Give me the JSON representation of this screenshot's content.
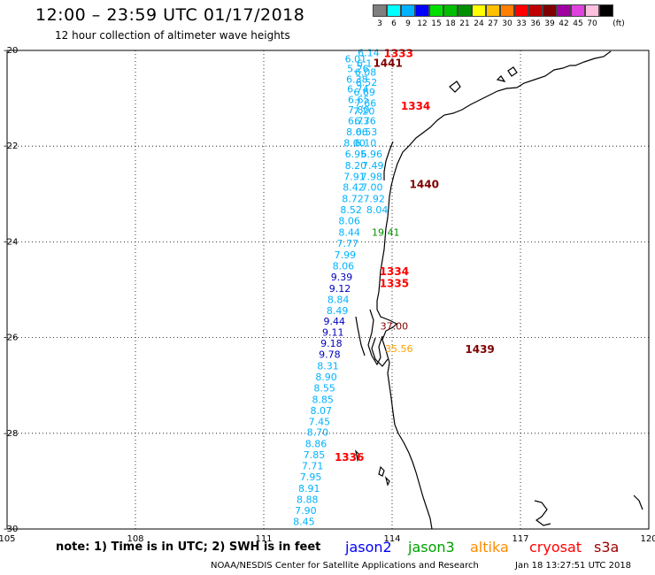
{
  "header": {
    "title": "12:00 – 23:59 UTC 01/17/2018",
    "subtitle": "12 hour collection of altimeter wave heights"
  },
  "legend": {
    "unit": "(ft)",
    "bins": [
      {
        "label": "3",
        "color": "#7f7f7f"
      },
      {
        "label": "6",
        "color": "#00ffff"
      },
      {
        "label": "9",
        "color": "#00b2ff"
      },
      {
        "label": "12",
        "color": "#0000ff"
      },
      {
        "label": "15",
        "color": "#00e000"
      },
      {
        "label": "18",
        "color": "#00bf00"
      },
      {
        "label": "21",
        "color": "#008f00"
      },
      {
        "label": "24",
        "color": "#ffff00"
      },
      {
        "label": "27",
        "color": "#ffc000"
      },
      {
        "label": "30",
        "color": "#ff8000"
      },
      {
        "label": "33",
        "color": "#ff0000"
      },
      {
        "label": "36",
        "color": "#c00000"
      },
      {
        "label": "39",
        "color": "#800000"
      },
      {
        "label": "42",
        "color": "#a000a0"
      },
      {
        "label": "45",
        "color": "#e040e0"
      },
      {
        "label": "70",
        "color": "#ffc0e0"
      },
      {
        "label": "",
        "color": "#000000"
      }
    ]
  },
  "map": {
    "lon_ticks": [
      "105",
      "108",
      "111",
      "114",
      "117",
      "120"
    ],
    "lat_ticks": [
      "-20",
      "-22",
      "-24",
      "-26",
      "-28",
      "-30"
    ],
    "gridlines": true
  },
  "chart_data": {
    "type": "scatter",
    "xlim": [
      105,
      120
    ],
    "ylim": [
      -30,
      -20
    ],
    "xlabel": "",
    "ylabel": "",
    "colors": {
      "light": "#00b2ff",
      "dark": "#0000c0",
      "green": "#008f00",
      "orange": "#ffa000",
      "red": "#ff0000",
      "dred": "#800000"
    },
    "points": [
      {
        "lon": 113.45,
        "lat": -20.05,
        "text": "6.14",
        "c": "light"
      },
      {
        "lon": 113.15,
        "lat": -20.18,
        "text": "6.01",
        "c": "light"
      },
      {
        "lon": 113.35,
        "lat": -20.27,
        "text": "6.1",
        "c": "light"
      },
      {
        "lon": 113.2,
        "lat": -20.38,
        "text": "5.26",
        "c": "light"
      },
      {
        "lon": 113.38,
        "lat": -20.45,
        "text": "6.08",
        "c": "light"
      },
      {
        "lon": 113.18,
        "lat": -20.6,
        "text": "6.38",
        "c": "light"
      },
      {
        "lon": 113.4,
        "lat": -20.67,
        "text": "6.52",
        "c": "light"
      },
      {
        "lon": 113.2,
        "lat": -20.8,
        "text": "6.74",
        "c": "light"
      },
      {
        "lon": 113.35,
        "lat": -20.87,
        "text": "6.69",
        "c": "light"
      },
      {
        "lon": 113.22,
        "lat": -21.03,
        "text": "6.65",
        "c": "light"
      },
      {
        "lon": 113.38,
        "lat": -21.1,
        "text": "7.66",
        "c": "light"
      },
      {
        "lon": 113.22,
        "lat": -21.24,
        "text": "7.80",
        "c": "light"
      },
      {
        "lon": 113.34,
        "lat": -21.27,
        "text": "7.20",
        "c": "light"
      },
      {
        "lon": 113.22,
        "lat": -21.47,
        "text": "6.73",
        "c": "light"
      },
      {
        "lon": 113.37,
        "lat": -21.47,
        "text": "6.76",
        "c": "light"
      },
      {
        "lon": 113.18,
        "lat": -21.7,
        "text": "8.06",
        "c": "light"
      },
      {
        "lon": 113.4,
        "lat": -21.7,
        "text": "6.53",
        "c": "light"
      },
      {
        "lon": 113.12,
        "lat": -21.93,
        "text": "8.00",
        "c": "light"
      },
      {
        "lon": 113.38,
        "lat": -21.93,
        "text": "6.10",
        "c": "light"
      },
      {
        "lon": 113.15,
        "lat": -22.16,
        "text": "6.95",
        "c": "light"
      },
      {
        "lon": 113.52,
        "lat": -22.16,
        "text": "6.96",
        "c": "light"
      },
      {
        "lon": 113.15,
        "lat": -22.4,
        "text": "8.20",
        "c": "light"
      },
      {
        "lon": 113.55,
        "lat": -22.4,
        "text": "7.49",
        "c": "light"
      },
      {
        "lon": 113.12,
        "lat": -22.63,
        "text": "7.91",
        "c": "light"
      },
      {
        "lon": 113.52,
        "lat": -22.63,
        "text": "7.98",
        "c": "light"
      },
      {
        "lon": 113.1,
        "lat": -22.86,
        "text": "8.42",
        "c": "light"
      },
      {
        "lon": 113.53,
        "lat": -22.86,
        "text": "7.00",
        "c": "light"
      },
      {
        "lon": 113.08,
        "lat": -23.1,
        "text": "8.72",
        "c": "light"
      },
      {
        "lon": 113.58,
        "lat": -23.1,
        "text": "7.92",
        "c": "light"
      },
      {
        "lon": 113.04,
        "lat": -23.33,
        "text": "8.52",
        "c": "light"
      },
      {
        "lon": 113.65,
        "lat": -23.33,
        "text": "8.04",
        "c": "light"
      },
      {
        "lon": 113.0,
        "lat": -23.56,
        "text": "8.06",
        "c": "light"
      },
      {
        "lon": 113.0,
        "lat": -23.8,
        "text": "8.44",
        "c": "light"
      },
      {
        "lon": 112.96,
        "lat": -24.03,
        "text": "7.77",
        "c": "light"
      },
      {
        "lon": 112.9,
        "lat": -24.27,
        "text": "7.99",
        "c": "light"
      },
      {
        "lon": 112.86,
        "lat": -24.5,
        "text": "8.06",
        "c": "light"
      },
      {
        "lon": 112.82,
        "lat": -24.73,
        "text": "9.39",
        "c": "dark"
      },
      {
        "lon": 112.78,
        "lat": -24.97,
        "text": "9.12",
        "c": "dark"
      },
      {
        "lon": 112.74,
        "lat": -25.2,
        "text": "8.84",
        "c": "light"
      },
      {
        "lon": 112.72,
        "lat": -25.43,
        "text": "8.49",
        "c": "light"
      },
      {
        "lon": 112.65,
        "lat": -25.66,
        "text": "9.44",
        "c": "dark"
      },
      {
        "lon": 112.62,
        "lat": -25.89,
        "text": "9.11",
        "c": "dark"
      },
      {
        "lon": 112.58,
        "lat": -26.12,
        "text": "9.18",
        "c": "dark"
      },
      {
        "lon": 112.54,
        "lat": -26.35,
        "text": "9.78",
        "c": "dark"
      },
      {
        "lon": 112.5,
        "lat": -26.59,
        "text": "8.31",
        "c": "light"
      },
      {
        "lon": 112.46,
        "lat": -26.82,
        "text": "8.90",
        "c": "light"
      },
      {
        "lon": 112.42,
        "lat": -27.05,
        "text": "8.55",
        "c": "light"
      },
      {
        "lon": 112.38,
        "lat": -27.29,
        "text": "8.85",
        "c": "light"
      },
      {
        "lon": 112.34,
        "lat": -27.52,
        "text": "8.07",
        "c": "light"
      },
      {
        "lon": 112.3,
        "lat": -27.75,
        "text": "7.45",
        "c": "light"
      },
      {
        "lon": 112.26,
        "lat": -27.98,
        "text": "8.70",
        "c": "light"
      },
      {
        "lon": 112.22,
        "lat": -28.22,
        "text": "8.86",
        "c": "light"
      },
      {
        "lon": 112.18,
        "lat": -28.45,
        "text": "7.85",
        "c": "light"
      },
      {
        "lon": 112.14,
        "lat": -28.68,
        "text": "7.71",
        "c": "light"
      },
      {
        "lon": 112.1,
        "lat": -28.91,
        "text": "7.95",
        "c": "light"
      },
      {
        "lon": 112.06,
        "lat": -29.15,
        "text": "8.91",
        "c": "light"
      },
      {
        "lon": 112.02,
        "lat": -29.38,
        "text": "8.88",
        "c": "light"
      },
      {
        "lon": 111.98,
        "lat": -29.61,
        "text": "7.90",
        "c": "light"
      },
      {
        "lon": 111.94,
        "lat": -29.84,
        "text": "8.45",
        "c": "light"
      },
      {
        "lon": 113.85,
        "lat": -23.8,
        "text": "19.41",
        "c": "green"
      },
      {
        "lon": 114.05,
        "lat": -25.76,
        "text": "37.00",
        "c": "dred"
      },
      {
        "lon": 114.16,
        "lat": -26.23,
        "text": "35.56",
        "c": "orange"
      }
    ],
    "passes": [
      {
        "lon": 114.15,
        "lat": -20.05,
        "text": "1333",
        "c": "red"
      },
      {
        "lon": 113.9,
        "lat": -20.25,
        "text": "1441",
        "c": "dred"
      },
      {
        "lon": 114.55,
        "lat": -21.15,
        "text": "1334",
        "c": "red"
      },
      {
        "lon": 114.75,
        "lat": -22.78,
        "text": "1440",
        "c": "dred"
      },
      {
        "lon": 114.05,
        "lat": -24.6,
        "text": "1334",
        "c": "red"
      },
      {
        "lon": 114.05,
        "lat": -24.85,
        "text": "1335",
        "c": "red"
      },
      {
        "lon": 116.05,
        "lat": -26.23,
        "text": "1439",
        "c": "dred"
      },
      {
        "lon": 113.0,
        "lat": -28.48,
        "text": "1336",
        "c": "red"
      }
    ]
  },
  "footer": {
    "note": "note:  1) Time is in UTC;  2) SWH is in feet",
    "credit": "NOAA/NESDIS Center for Satellite Applications and Research",
    "timestamp": "Jan 18 13:27:51 UTC 2018",
    "missions": [
      {
        "label": "jason2",
        "color": "#0000ff"
      },
      {
        "label": "jason3",
        "color": "#00a000"
      },
      {
        "label": "altika",
        "color": "#ff8c00"
      },
      {
        "label": "cryosat",
        "color": "#ff0000"
      },
      {
        "label": "s3a",
        "color": "#a00000"
      }
    ]
  }
}
